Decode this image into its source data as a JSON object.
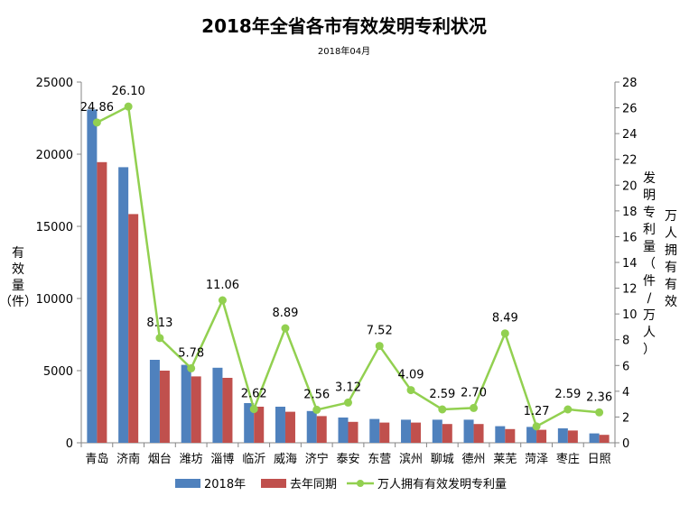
{
  "chart_data": {
    "type": "bar",
    "title": "2018年全省各市有效发明专利状况",
    "subtitle": "2018年04月",
    "ylabel_left": "有效量（件）",
    "ylabel_right_1": "万人拥有有效",
    "ylabel_right_2": "发明专利量（件/万人）",
    "ylim_left": [
      0,
      25000
    ],
    "yticks_left": [
      "0",
      "5000",
      "10000",
      "15000",
      "20000",
      "25000"
    ],
    "ylim_right": [
      0,
      28
    ],
    "yticks_right": [
      "0",
      "2",
      "4",
      "6",
      "8",
      "10",
      "12",
      "14",
      "16",
      "18",
      "20",
      "22",
      "24",
      "26",
      "28"
    ],
    "categories": [
      "青岛",
      "济南",
      "烟台",
      "潍坊",
      "淄博",
      "临沂",
      "威海",
      "济宁",
      "泰安",
      "东营",
      "滨州",
      "聊城",
      "德州",
      "莱芜",
      "菏泽",
      "枣庄",
      "日照"
    ],
    "series": [
      {
        "name": "2018年",
        "type": "bar",
        "axis": "left",
        "color": "#4f81bd",
        "values": [
          23100,
          19100,
          5750,
          5400,
          5200,
          2750,
          2500,
          2200,
          1750,
          1650,
          1600,
          1600,
          1600,
          1150,
          1100,
          1000,
          650
        ]
      },
      {
        "name": "去年同期",
        "type": "bar",
        "axis": "left",
        "color": "#c0504d",
        "values": [
          19450,
          15850,
          5000,
          4600,
          4500,
          2500,
          2150,
          1850,
          1450,
          1400,
          1400,
          1300,
          1300,
          950,
          900,
          850,
          550
        ]
      },
      {
        "name": "万人拥有有效发明专利量",
        "type": "line",
        "axis": "right",
        "color": "#92d050",
        "values": [
          24.86,
          26.1,
          8.13,
          5.78,
          11.06,
          2.62,
          8.89,
          2.56,
          3.12,
          7.52,
          4.09,
          2.59,
          2.7,
          8.49,
          1.27,
          2.59,
          2.36
        ],
        "labels": [
          "24.86",
          "26.10",
          "8.13",
          "5.78",
          "11.06",
          "2.62",
          "8.89",
          "2.56",
          "3.12",
          "7.52",
          "4.09",
          "2.59",
          "2.70",
          "8.49",
          "1.27",
          "2.59",
          "2.36"
        ]
      }
    ],
    "grid": false,
    "legend_position": "bottom"
  }
}
